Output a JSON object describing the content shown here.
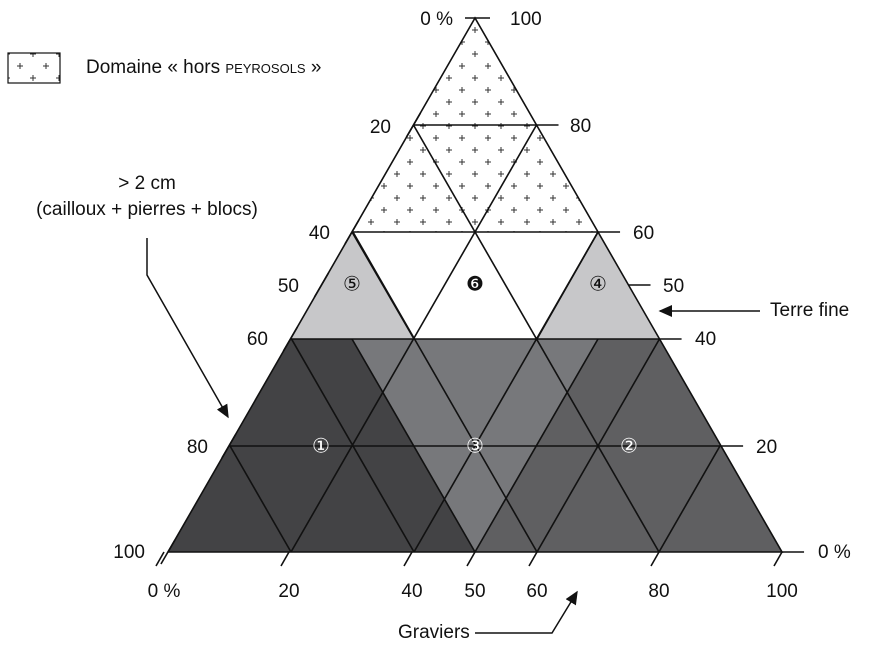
{
  "legend": {
    "prefix": "Domaine « hors ",
    "term": "peyrosols",
    "suffix": " »"
  },
  "left_axis": [
    "0 %",
    "20",
    "40",
    "50",
    "60",
    "80",
    "100"
  ],
  "right_axis": [
    "100",
    "80",
    "60",
    "50",
    "40",
    "20",
    "0 %"
  ],
  "bottom_axis": [
    "0 %",
    "20",
    "40",
    "50",
    "60",
    "80",
    "100"
  ],
  "zones": [
    "①",
    "②",
    "③",
    "④",
    "⑤",
    "❻"
  ],
  "annotations": {
    "coarse": [
      "> 2 cm",
      "(cailloux + pierres + blocs)"
    ],
    "fine": "Terre fine",
    "gravel": "Graviers"
  }
}
